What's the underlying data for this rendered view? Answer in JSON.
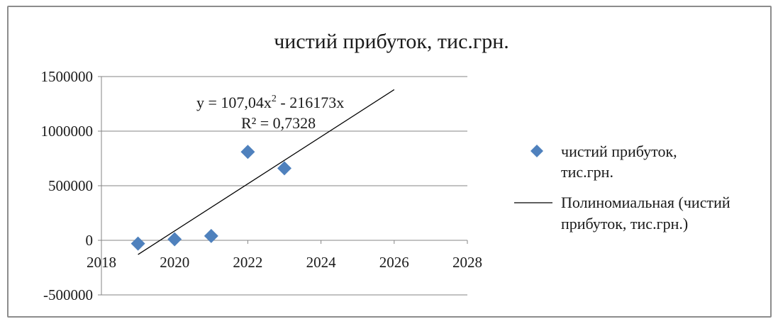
{
  "chart_data": {
    "type": "scatter",
    "title": "чистий прибуток,  тис.грн.",
    "xlabel": "",
    "ylabel": "",
    "xlim": [
      2018,
      2028
    ],
    "ylim": [
      -500000,
      1500000
    ],
    "x_ticks": [
      2018,
      2020,
      2022,
      2024,
      2026,
      2028
    ],
    "y_ticks": [
      -500000,
      0,
      500000,
      1000000,
      1500000
    ],
    "x_tick_labels": [
      "2018",
      "2020",
      "2022",
      "2024",
      "2026",
      "2028"
    ],
    "y_tick_labels": [
      "-500000",
      "0",
      "500000",
      "1000000",
      "1500000"
    ],
    "grid": "horizontal",
    "legend_position": "right",
    "series": [
      {
        "name": "чистий прибуток, тис.грн.",
        "marker": "diamond",
        "color": "#4f81bd",
        "x": [
          2019,
          2020,
          2021,
          2022,
          2023
        ],
        "y": [
          -30000,
          10000,
          40000,
          810000,
          660000
        ]
      }
    ],
    "trendline": {
      "name": "Полиномиальная (чистий прибуток, тис.грн.)",
      "color": "#000000",
      "x": [
        2019,
        2026
      ],
      "y": [
        -130000,
        1380000
      ],
      "equation_prefix": "y = 107,04x",
      "equation_exponent": "2",
      "equation_suffix": " - 216173x",
      "r_squared": "R² = 0,7328"
    },
    "legend_lines": [
      [
        "чистий прибуток,",
        "тис.грн."
      ],
      [
        "Полиномиальная (чистий",
        "прибуток, тис.грн.)"
      ]
    ]
  }
}
